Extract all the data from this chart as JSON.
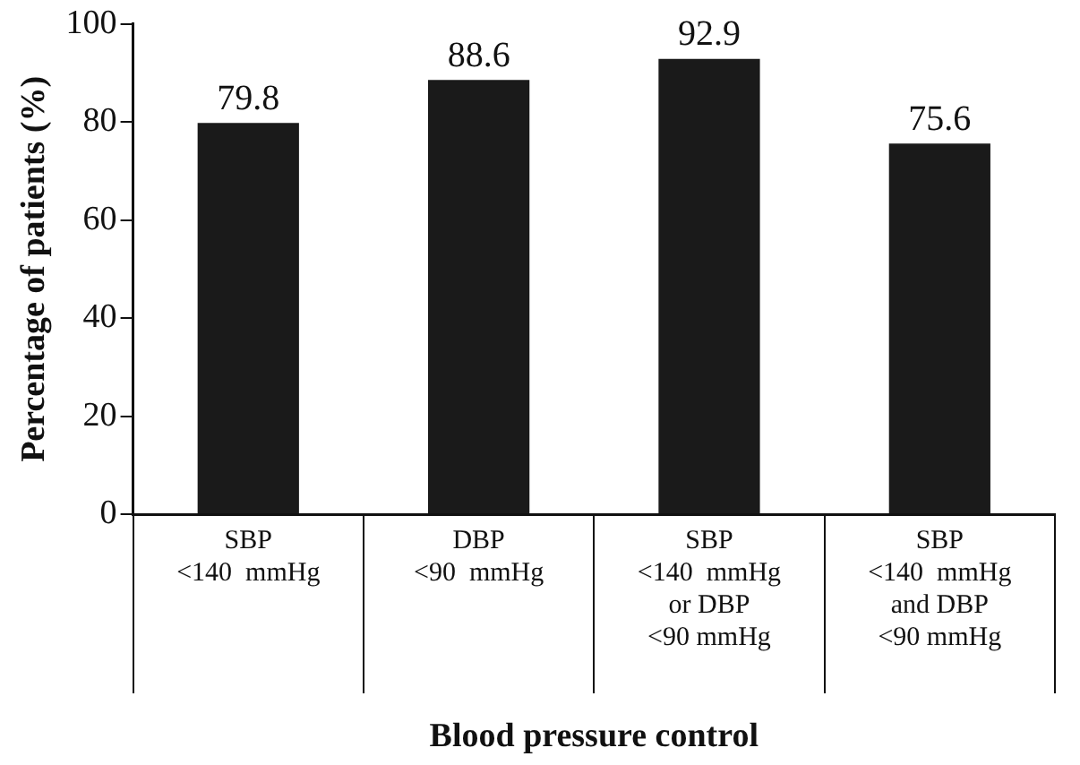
{
  "chart_data": {
    "type": "bar",
    "xlabel": "Blood pressure control",
    "ylabel": "Percentage of patients (%)",
    "categories": [
      "SBP\n<140  mmHg",
      "DBP\n<90  mmHg",
      "SBP\n<140  mmHg\nor DBP\n<90 mmHg",
      "SBP\n<140  mmHg\nand DBP\n<90 mmHg"
    ],
    "values": [
      79.8,
      88.6,
      92.9,
      75.6
    ],
    "color": "#1a1a1a",
    "ylim": [
      0,
      100
    ],
    "yticks": [
      0,
      20,
      40,
      60,
      80,
      100
    ],
    "grid": false,
    "legend": false,
    "data_labels": true
  }
}
